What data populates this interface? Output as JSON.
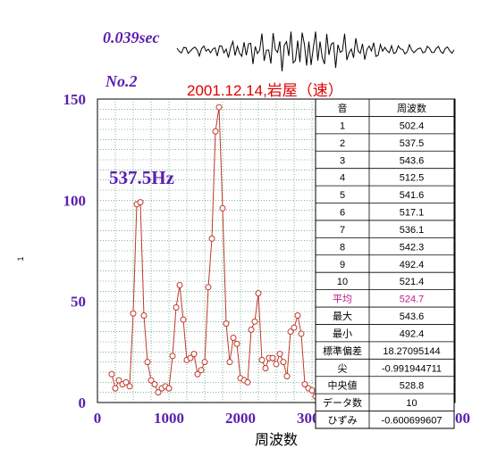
{
  "header": {
    "duration_label": "0.039sec",
    "record_label": "No.2",
    "title": "2001.12.14,岩屋（速）",
    "peak_label": "537.5Hz"
  },
  "colors": {
    "axis_label": "#5a1fae",
    "line": "#c0392b",
    "title": "#e00000",
    "grid": "#2e8b57",
    "highlight": "#c01a8a"
  },
  "axes": {
    "xlabel": "周波数",
    "ylabel": "1"
  },
  "table": {
    "headers": [
      "音",
      "周波数"
    ],
    "rows": [
      [
        "1",
        "502.4"
      ],
      [
        "2",
        "537.5"
      ],
      [
        "3",
        "543.6"
      ],
      [
        "4",
        "512.5"
      ],
      [
        "5",
        "541.6"
      ],
      [
        "6",
        "517.1"
      ],
      [
        "7",
        "536.1"
      ],
      [
        "8",
        "542.3"
      ],
      [
        "9",
        "492.4"
      ],
      [
        "10",
        "521.4"
      ]
    ],
    "stats": [
      [
        "平均",
        "524.7"
      ],
      [
        "最大",
        "543.6"
      ],
      [
        "最小",
        "492.4"
      ],
      [
        "標準偏差",
        "18.27095144"
      ],
      [
        "尖",
        "-0.991944711"
      ],
      [
        "中央値",
        "528.8"
      ],
      [
        "データ数",
        "10"
      ],
      [
        "ひずみ",
        "-0.600699607"
      ]
    ]
  },
  "chart_data": {
    "type": "line",
    "title": "2001.12.14,岩屋（速）",
    "xlabel": "周波数",
    "ylabel": "1",
    "xlim": [
      0,
      5000
    ],
    "ylim": [
      0,
      150
    ],
    "x_ticks": [
      0,
      1000,
      2000,
      3000,
      4000,
      5000
    ],
    "y_ticks": [
      0,
      50,
      100,
      150
    ],
    "grid": true,
    "markers": "circle",
    "annotation": "537.5Hz",
    "x": [
      200,
      250,
      300,
      350,
      400,
      450,
      500,
      550,
      600,
      650,
      700,
      750,
      800,
      850,
      900,
      950,
      1000,
      1050,
      1100,
      1150,
      1200,
      1250,
      1300,
      1350,
      1400,
      1450,
      1500,
      1550,
      1600,
      1650,
      1700,
      1750,
      1800,
      1850,
      1900,
      1950,
      2000,
      2050,
      2100,
      2150,
      2200,
      2250,
      2300,
      2350,
      2400,
      2450,
      2500,
      2550,
      2600,
      2650,
      2700,
      2750,
      2800,
      2850,
      2900,
      2950,
      3000,
      3050
    ],
    "y": [
      14,
      7,
      11,
      9,
      10,
      8,
      44,
      98,
      99,
      43,
      20,
      11,
      9,
      5,
      7,
      8,
      7,
      23,
      47,
      58,
      41,
      21,
      22,
      24,
      14,
      16,
      20,
      57,
      81,
      134,
      146,
      96,
      39,
      20,
      32,
      29,
      12,
      11,
      10,
      36,
      40,
      54,
      21,
      17,
      22,
      22,
      19,
      24,
      20,
      13,
      35,
      37,
      43,
      34,
      9,
      7,
      6,
      3
    ]
  }
}
